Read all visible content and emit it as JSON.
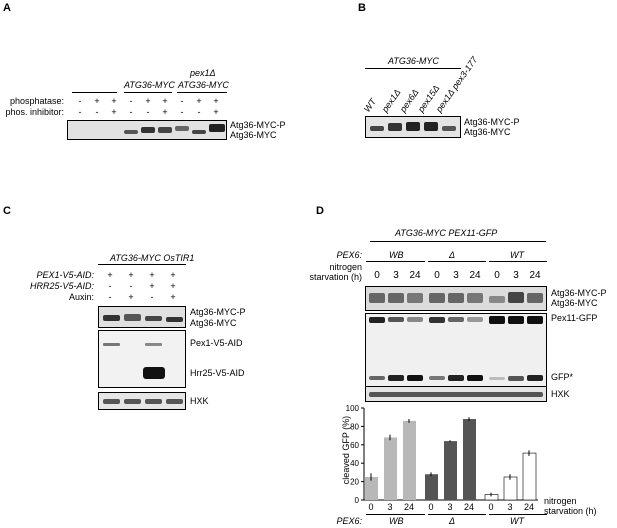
{
  "panels": {
    "a": {
      "letter": "A",
      "header_strain": "ATG36-MYC",
      "header_pex": "pex1Δ",
      "header_strain2": "ATG36-MYC",
      "row1_label": "phosphatase:",
      "row2_label": "phos. inhibitor:",
      "row1_values": [
        "-",
        "+",
        "+",
        "-",
        "+",
        "+",
        "-",
        "+",
        "+"
      ],
      "row2_values": [
        "-",
        "-",
        "+",
        "-",
        "-",
        "+",
        "-",
        "-",
        "+"
      ],
      "band_top": "Atg36-MYC-P",
      "band_bottom": "Atg36-MYC"
    },
    "b": {
      "letter": "B",
      "header": "ATG36-MYC",
      "lanes": [
        "WT",
        "pex1Δ",
        "pex6Δ",
        "pex15Δ",
        "pex1Δ pex3-177"
      ],
      "band_top": "Atg36-MYC-P",
      "band_bottom": "Atg36-MYC"
    },
    "c": {
      "letter": "C",
      "header": "ATG36-MYC OsTIR1",
      "rows": [
        {
          "label": "PEX1-V5-AID:",
          "values": [
            "+",
            "+",
            "+",
            "+"
          ]
        },
        {
          "label": "HRR25-V5-AID:",
          "values": [
            "-",
            "-",
            "+",
            "+"
          ]
        },
        {
          "label": "Auxin:",
          "values": [
            "-",
            "+",
            "-",
            "+"
          ]
        }
      ],
      "band_labels": [
        "Atg36-MYC-P",
        "Atg36-MYC",
        "Pex1-V5-AID",
        "Hrr25-V5-AID",
        "HXK"
      ]
    },
    "d": {
      "letter": "D",
      "header": "ATG36-MYC PEX11-GFP",
      "pex6_label": "PEX6:",
      "groups": [
        "WB",
        "Δ",
        "WT"
      ],
      "nitrogen_label_1": "nitrogen",
      "nitrogen_label_2": "starvation (h)",
      "timepoints": [
        "0",
        "3",
        "24",
        "0",
        "3",
        "24",
        "0",
        "3",
        "24"
      ],
      "band_labels": [
        "Atg36-MYC-P",
        "Atg36-MYC",
        "Pex11-GFP",
        "GFP*",
        "HXK"
      ]
    }
  },
  "chart_data": {
    "type": "bar",
    "ylabel": "cleaved GFP (%)",
    "xlabel_1": "nitrogen",
    "xlabel_2": "starvation (h)",
    "group_label": "PEX6:",
    "ylim": [
      0,
      100
    ],
    "yticks": [
      "0",
      "20",
      "40",
      "60",
      "80",
      "100"
    ],
    "categories": [
      "0",
      "3",
      "24",
      "0",
      "3",
      "24",
      "0",
      "3",
      "24"
    ],
    "groups": [
      "WB",
      "Δ",
      "WT"
    ],
    "values": [
      25,
      68,
      86,
      28,
      64,
      88,
      6,
      25,
      51
    ],
    "errors": [
      4,
      3,
      2,
      2,
      1,
      2,
      2,
      3,
      3
    ],
    "colors": [
      "#b8b8b8",
      "#b8b8b8",
      "#b8b8b8",
      "#555555",
      "#555555",
      "#555555",
      "#ffffff",
      "#ffffff",
      "#ffffff"
    ]
  }
}
